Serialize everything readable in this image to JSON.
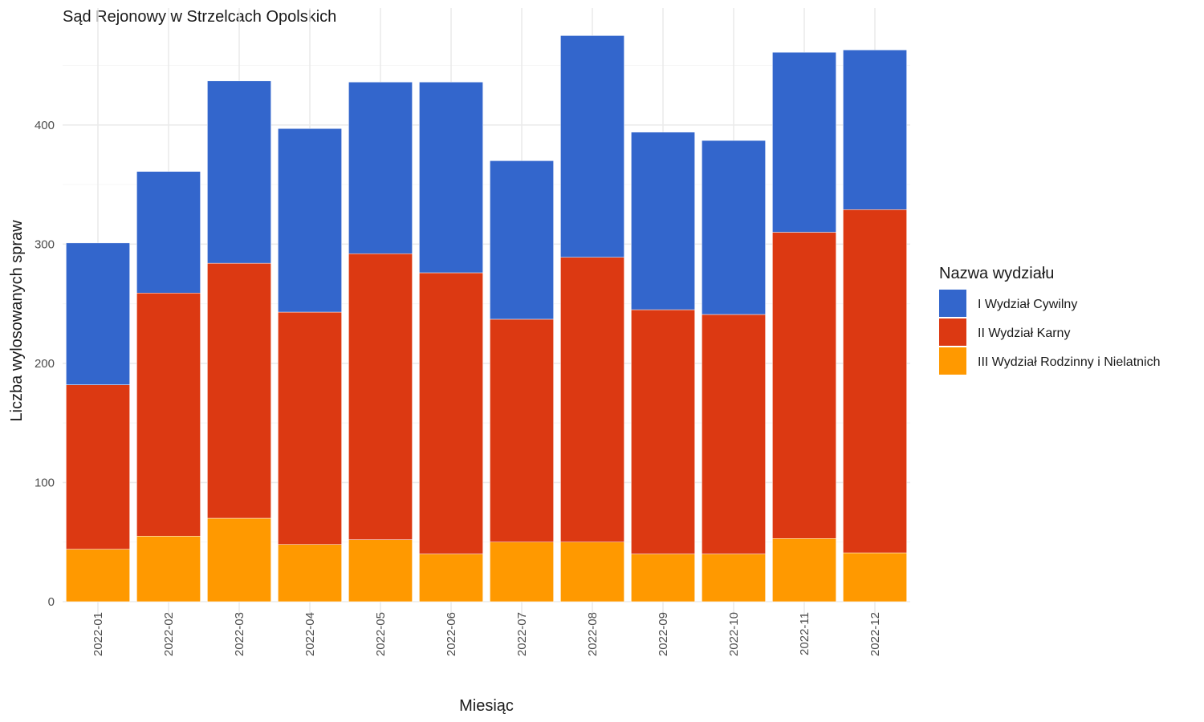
{
  "chart_data": {
    "type": "bar",
    "stacked": true,
    "title": "Sąd Rejonowy w Strzelcach Opolskich",
    "xlabel": "Miesiąc",
    "ylabel": "Liczba wylosowanych spraw",
    "ylim": [
      0,
      500
    ],
    "yticks": [
      0,
      100,
      200,
      300,
      400
    ],
    "grid": true,
    "categories": [
      "2022-01",
      "2022-02",
      "2022-03",
      "2022-04",
      "2022-05",
      "2022-06",
      "2022-07",
      "2022-08",
      "2022-09",
      "2022-10",
      "2022-11",
      "2022-12"
    ],
    "legend": {
      "title": "Nazwa wydziału",
      "position": "right"
    },
    "series": [
      {
        "name": "I Wydział Cywilny",
        "color": "#3366cc",
        "values": [
          119,
          102,
          153,
          154,
          144,
          160,
          133,
          186,
          149,
          146,
          151,
          134
        ]
      },
      {
        "name": "II Wydział Karny",
        "color": "#dc3912",
        "values": [
          138,
          204,
          214,
          195,
          240,
          236,
          187,
          239,
          205,
          201,
          257,
          288
        ]
      },
      {
        "name": "III Wydział Rodzinny i Nielatnich",
        "color": "#ff9900",
        "values": [
          44,
          55,
          70,
          48,
          52,
          40,
          50,
          50,
          40,
          40,
          53,
          41
        ]
      }
    ]
  }
}
